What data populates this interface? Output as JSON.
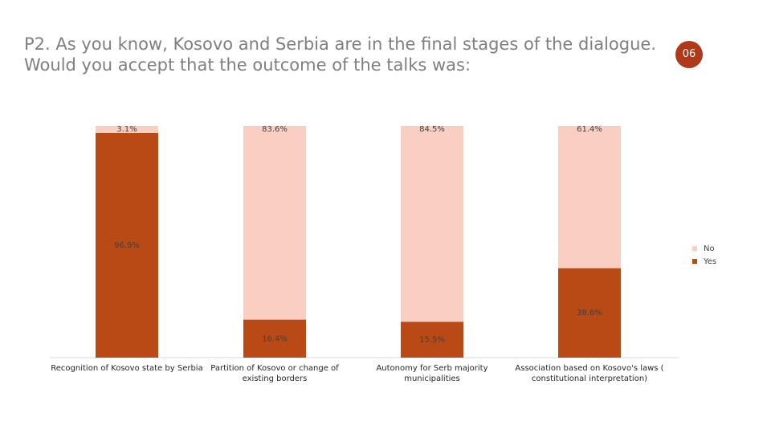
{
  "page_number": "06",
  "chart_data": {
    "type": "stacked_bar",
    "title": "P2. As you know, Kosovo and Serbia are in the final stages of the dialogue. Would you accept that the outcome of the talks was:",
    "categories": [
      "Recognition of Kosovo state by Serbia",
      "Partition of Kosovo or change of existing borders",
      "Autonomy for Serb majority municipalities",
      "Association based on Kosovo's laws ( constitutional interpretation)"
    ],
    "series": [
      {
        "name": "Yes",
        "color": "#b94a15",
        "values": [
          96.9,
          16.4,
          15.5,
          38.6
        ],
        "value_labels": [
          "96.9%",
          "16.4%",
          "15.5%",
          "38.6%"
        ]
      },
      {
        "name": "No",
        "color": "#f8cfc2",
        "values": [
          3.1,
          83.6,
          84.5,
          61.4
        ],
        "value_labels": [
          "3.1%",
          "83.6%",
          "84.5%",
          "61.4%"
        ]
      }
    ],
    "legend": "right"
  }
}
